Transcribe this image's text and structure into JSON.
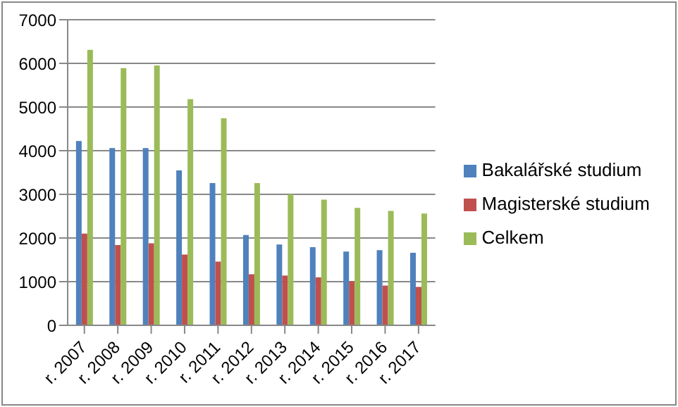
{
  "chart_data": {
    "type": "bar",
    "categories": [
      "r. 2007",
      "r. 2008",
      "r. 2009",
      "r. 2010",
      "r. 2011",
      "r. 2012",
      "r. 2013",
      "r. 2014",
      "r. 2015",
      "r. 2016",
      "r. 2017"
    ],
    "series": [
      {
        "name": "Bakalářské studium",
        "color": "#4f81bd",
        "values": [
          4220,
          4060,
          4060,
          3550,
          3260,
          2070,
          1850,
          1790,
          1690,
          1720,
          1660
        ]
      },
      {
        "name": "Magisterské studium",
        "color": "#c0504d",
        "values": [
          2100,
          1840,
          1880,
          1620,
          1460,
          1170,
          1140,
          1100,
          1010,
          910,
          880
        ]
      },
      {
        "name": "Celkem",
        "color": "#9bbb59",
        "values": [
          6310,
          5890,
          5950,
          5180,
          4740,
          3260,
          3000,
          2880,
          2690,
          2620,
          2560
        ]
      }
    ],
    "ylim": [
      0,
      7000
    ],
    "yticks": [
      0,
      1000,
      2000,
      3000,
      4000,
      5000,
      6000,
      7000
    ],
    "grid": "y",
    "legend": "right"
  }
}
